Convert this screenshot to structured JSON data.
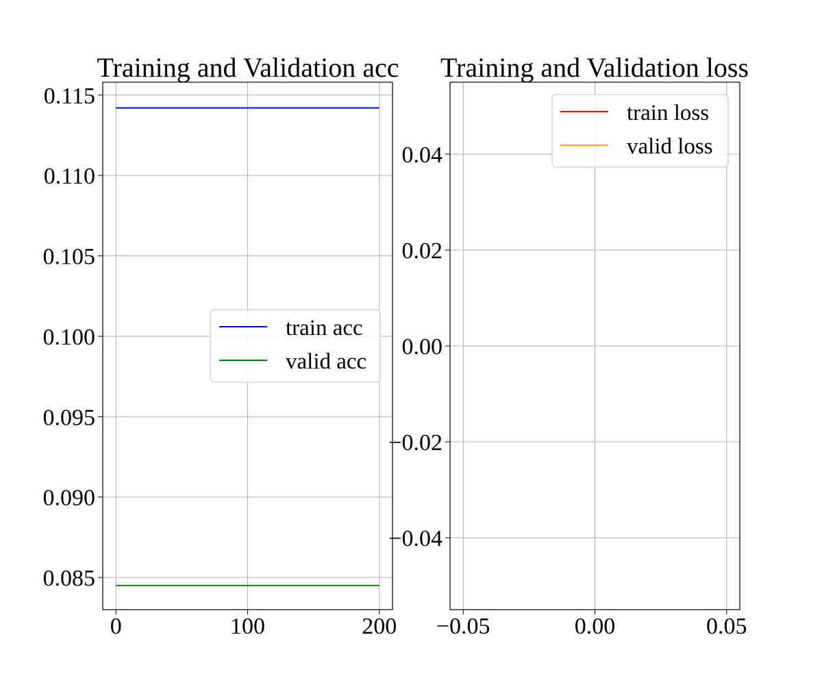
{
  "chart_data": [
    {
      "type": "line",
      "title": "Training and Validation acc",
      "xlabel": "",
      "ylabel": "",
      "xlim": [
        -10,
        210
      ],
      "ylim": [
        0.083,
        0.1158
      ],
      "xticks": [
        0,
        100,
        200
      ],
      "xtick_labels": [
        "0",
        "100",
        "200"
      ],
      "yticks": [
        0.085,
        0.09,
        0.095,
        0.1,
        0.105,
        0.11,
        0.115
      ],
      "ytick_labels": [
        "0.085",
        "0.090",
        "0.095",
        "0.100",
        "0.105",
        "0.110",
        "0.115"
      ],
      "grid": true,
      "legend_position": "center-right",
      "series": [
        {
          "name": "train acc",
          "color": "#0000ff",
          "x": [
            0,
            200
          ],
          "y": [
            0.1142,
            0.1142
          ]
        },
        {
          "name": "valid acc",
          "color": "#008000",
          "x": [
            0,
            200
          ],
          "y": [
            0.0845,
            0.0845
          ]
        }
      ]
    },
    {
      "type": "line",
      "title": "Training and Validation loss",
      "xlabel": "",
      "ylabel": "",
      "xlim": [
        -0.055,
        0.055
      ],
      "ylim": [
        -0.055,
        0.055
      ],
      "xticks": [
        -0.05,
        0.0,
        0.05
      ],
      "xtick_labels": [
        "−0.05",
        "0.00",
        "0.05"
      ],
      "yticks": [
        -0.04,
        -0.02,
        0.0,
        0.02,
        0.04
      ],
      "ytick_labels": [
        "−0.04",
        "−0.02",
        "0.00",
        "0.02",
        "0.04"
      ],
      "grid": true,
      "legend_position": "upper-right",
      "series": [
        {
          "name": "train loss",
          "color": "#ff0000",
          "x": [],
          "y": []
        },
        {
          "name": "valid loss",
          "color": "#ffa500",
          "x": [],
          "y": []
        }
      ]
    }
  ]
}
